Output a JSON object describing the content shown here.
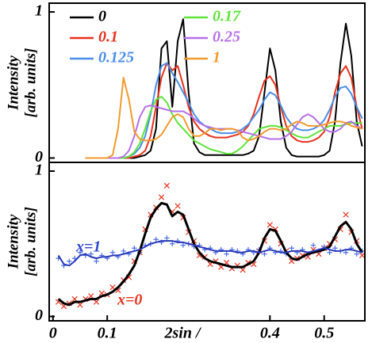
{
  "chart_data": [
    {
      "type": "line",
      "y_label": [
        "Intensity",
        "[arb. units]"
      ],
      "xlim": [
        -0.007,
        0.575
      ],
      "ylim": [
        -0.03,
        1.06
      ],
      "yticks": [
        0,
        1
      ],
      "legend": "top-left",
      "x": [
        0.06,
        0.07,
        0.08,
        0.09,
        0.1,
        0.11,
        0.12,
        0.13,
        0.14,
        0.15,
        0.16,
        0.17,
        0.18,
        0.19,
        0.2,
        0.21,
        0.22,
        0.23,
        0.24,
        0.25,
        0.26,
        0.27,
        0.28,
        0.29,
        0.3,
        0.31,
        0.32,
        0.33,
        0.34,
        0.35,
        0.36,
        0.37,
        0.38,
        0.39,
        0.4,
        0.41,
        0.42,
        0.43,
        0.44,
        0.45,
        0.46,
        0.47,
        0.48,
        0.49,
        0.5,
        0.51,
        0.52,
        0.53,
        0.54,
        0.55,
        0.56,
        0.57
      ],
      "series": [
        {
          "name": "0",
          "color": "#000000",
          "values": [
            0,
            0,
            0,
            0,
            0,
            0,
            0,
            0,
            0,
            0,
            0.01,
            0.02,
            0.05,
            0.2,
            0.75,
            0.8,
            0.35,
            0.8,
            0.95,
            0.45,
            0.1,
            0.04,
            0.02,
            0.02,
            0.02,
            0.02,
            0.02,
            0.02,
            0.02,
            0.02,
            0.03,
            0.05,
            0.15,
            0.45,
            0.75,
            0.6,
            0.25,
            0.07,
            0.02,
            0.01,
            0.01,
            0.01,
            0.01,
            0.01,
            0.02,
            0.05,
            0.25,
            0.65,
            0.92,
            0.7,
            0.25,
            0.08
          ]
        },
        {
          "name": "0.1",
          "color": "#e8321e",
          "values": [
            0,
            0,
            0,
            0,
            0,
            0,
            0,
            0,
            0,
            0.01,
            0.02,
            0.05,
            0.15,
            0.35,
            0.55,
            0.65,
            0.6,
            0.63,
            0.5,
            0.35,
            0.25,
            0.2,
            0.17,
            0.15,
            0.14,
            0.14,
            0.14,
            0.15,
            0.16,
            0.18,
            0.22,
            0.3,
            0.42,
            0.53,
            0.56,
            0.5,
            0.35,
            0.22,
            0.15,
            0.12,
            0.11,
            0.11,
            0.12,
            0.14,
            0.18,
            0.28,
            0.45,
            0.58,
            0.63,
            0.55,
            0.35,
            0.2
          ]
        },
        {
          "name": "0.125",
          "color": "#4a8ee8",
          "values": [
            0,
            0,
            0,
            0,
            0,
            0,
            0,
            0,
            0.01,
            0.03,
            0.07,
            0.15,
            0.3,
            0.5,
            0.63,
            0.65,
            0.58,
            0.52,
            0.45,
            0.38,
            0.3,
            0.25,
            0.22,
            0.2,
            0.18,
            0.17,
            0.17,
            0.17,
            0.18,
            0.2,
            0.23,
            0.28,
            0.33,
            0.4,
            0.45,
            0.43,
            0.36,
            0.28,
            0.23,
            0.2,
            0.19,
            0.19,
            0.2,
            0.22,
            0.26,
            0.33,
            0.42,
            0.48,
            0.49,
            0.44,
            0.35,
            0.27
          ]
        },
        {
          "name": "0.17",
          "color": "#5ee43a",
          "values": [
            0,
            0,
            0,
            0,
            0,
            0,
            0,
            0,
            0.01,
            0.04,
            0.1,
            0.2,
            0.32,
            0.4,
            0.42,
            0.38,
            0.3,
            0.24,
            0.2,
            0.16,
            0.12,
            0.1,
            0.08,
            0.06,
            0.05,
            0.04,
            0.03,
            0.03,
            0.05,
            0.08,
            0.12,
            0.16,
            0.2,
            0.21,
            0.22,
            0.22,
            0.21,
            0.19,
            0.17,
            0.15,
            0.14,
            0.14,
            0.16,
            0.18,
            0.2,
            0.22,
            0.22,
            0.22,
            0.23,
            0.24,
            0.24,
            0.24
          ]
        },
        {
          "name": "0.25",
          "color": "#b670e8",
          "values": [
            0,
            0,
            0,
            0,
            0,
            0,
            0,
            0.01,
            0.05,
            0.15,
            0.28,
            0.35,
            0.36,
            0.35,
            0.34,
            0.33,
            0.32,
            0.32,
            0.32,
            0.3,
            0.27,
            0.24,
            0.22,
            0.21,
            0.2,
            0.2,
            0.2,
            0.2,
            0.19,
            0.18,
            0.17,
            0.16,
            0.15,
            0.14,
            0.13,
            0.13,
            0.13,
            0.15,
            0.18,
            0.23,
            0.28,
            0.3,
            0.28,
            0.24,
            0.2,
            0.18,
            0.18,
            0.2,
            0.24,
            0.25,
            0.22,
            0.2
          ]
        },
        {
          "name": "1",
          "color": "#f29a2e",
          "values": [
            0,
            0,
            0,
            0,
            0,
            0.02,
            0.2,
            0.55,
            0.4,
            0.18,
            0.13,
            0.12,
            0.12,
            0.13,
            0.16,
            0.22,
            0.28,
            0.3,
            0.28,
            0.2,
            0.15,
            0.15,
            0.17,
            0.2,
            0.2,
            0.19,
            0.2,
            0.2,
            0.19,
            0.14,
            0.12,
            0.13,
            0.15,
            0.18,
            0.2,
            0.2,
            0.19,
            0.2,
            0.23,
            0.25,
            0.24,
            0.22,
            0.22,
            0.22,
            0.23,
            0.24,
            0.25,
            0.25,
            0.24,
            0.22,
            0.21,
            0.2
          ]
        }
      ]
    },
    {
      "type": "line",
      "y_label": [
        "Intensity",
        "[arb. units]"
      ],
      "x_label": "2sin /",
      "xlim": [
        -0.007,
        0.575
      ],
      "ylim": [
        -0.03,
        1.06
      ],
      "yticks": [
        0,
        1
      ],
      "xticks": [
        0,
        0.1,
        0.4,
        0.5
      ],
      "annotations": [
        {
          "text": "x=1",
          "color": "#3048d0"
        },
        {
          "text": "x=0",
          "color": "#e8321e"
        }
      ],
      "x": [
        0.01,
        0.02,
        0.03,
        0.04,
        0.05,
        0.06,
        0.07,
        0.08,
        0.09,
        0.1,
        0.11,
        0.12,
        0.13,
        0.14,
        0.15,
        0.16,
        0.17,
        0.18,
        0.19,
        0.2,
        0.21,
        0.22,
        0.23,
        0.24,
        0.25,
        0.26,
        0.27,
        0.28,
        0.29,
        0.3,
        0.31,
        0.32,
        0.33,
        0.34,
        0.35,
        0.36,
        0.37,
        0.38,
        0.39,
        0.4,
        0.41,
        0.42,
        0.43,
        0.44,
        0.45,
        0.46,
        0.47,
        0.48,
        0.49,
        0.5,
        0.51,
        0.52,
        0.53,
        0.54,
        0.55,
        0.56,
        0.57
      ],
      "series": [
        {
          "kind": "scatter",
          "marker": "x",
          "color": "#e8321e",
          "values": [
            0.1,
            0.07,
            0.09,
            0.12,
            0.08,
            0.12,
            0.14,
            0.1,
            0.16,
            0.15,
            0.2,
            0.18,
            0.25,
            0.27,
            0.38,
            0.44,
            0.6,
            0.7,
            0.75,
            0.82,
            0.9,
            0.72,
            0.76,
            0.68,
            0.58,
            0.52,
            0.42,
            0.41,
            0.36,
            0.38,
            0.34,
            0.37,
            0.33,
            0.35,
            0.32,
            0.37,
            0.36,
            0.45,
            0.52,
            0.63,
            0.6,
            0.5,
            0.45,
            0.38,
            0.4,
            0.42,
            0.41,
            0.46,
            0.43,
            0.47,
            0.5,
            0.53,
            0.6,
            0.7,
            0.58,
            0.52,
            0.42
          ]
        },
        {
          "kind": "scatter",
          "marker": "+",
          "color": "#4a6ee8",
          "values": [
            0.4,
            0.35,
            0.38,
            0.4,
            0.44,
            0.42,
            0.43,
            0.38,
            0.42,
            0.4,
            0.44,
            0.41,
            0.45,
            0.43,
            0.47,
            0.44,
            0.49,
            0.5,
            0.53,
            0.51,
            0.54,
            0.5,
            0.52,
            0.49,
            0.5,
            0.48,
            0.49,
            0.46,
            0.47,
            0.44,
            0.46,
            0.43,
            0.46,
            0.45,
            0.43,
            0.46,
            0.44,
            0.46,
            0.43,
            0.47,
            0.44,
            0.45,
            0.43,
            0.47,
            0.44,
            0.46,
            0.43,
            0.49,
            0.45,
            0.48,
            0.44,
            0.47,
            0.45,
            0.44,
            0.47,
            0.43,
            0.45
          ]
        },
        {
          "kind": "line",
          "color": "#000000",
          "values": [
            0.12,
            0.09,
            0.08,
            0.1,
            0.1,
            0.11,
            0.12,
            0.12,
            0.14,
            0.15,
            0.17,
            0.2,
            0.24,
            0.29,
            0.35,
            0.45,
            0.57,
            0.68,
            0.74,
            0.78,
            0.77,
            0.69,
            0.72,
            0.7,
            0.6,
            0.5,
            0.44,
            0.4,
            0.38,
            0.37,
            0.36,
            0.35,
            0.34,
            0.34,
            0.34,
            0.36,
            0.38,
            0.44,
            0.54,
            0.6,
            0.59,
            0.52,
            0.44,
            0.4,
            0.39,
            0.41,
            0.43,
            0.44,
            0.45,
            0.46,
            0.48,
            0.55,
            0.62,
            0.65,
            0.6,
            0.5,
            0.44
          ]
        },
        {
          "kind": "line",
          "color": "#2838b8",
          "values": [
            0.42,
            0.36,
            0.35,
            0.38,
            0.42,
            0.43,
            0.41,
            0.4,
            0.41,
            0.41,
            0.42,
            0.42,
            0.43,
            0.44,
            0.45,
            0.46,
            0.48,
            0.5,
            0.51,
            0.52,
            0.52,
            0.52,
            0.51,
            0.51,
            0.5,
            0.49,
            0.48,
            0.47,
            0.46,
            0.45,
            0.45,
            0.45,
            0.45,
            0.44,
            0.44,
            0.45,
            0.45,
            0.44,
            0.45,
            0.46,
            0.45,
            0.44,
            0.44,
            0.45,
            0.45,
            0.45,
            0.44,
            0.45,
            0.46,
            0.47,
            0.46,
            0.45,
            0.45,
            0.46,
            0.46,
            0.45,
            0.44
          ]
        }
      ]
    }
  ]
}
